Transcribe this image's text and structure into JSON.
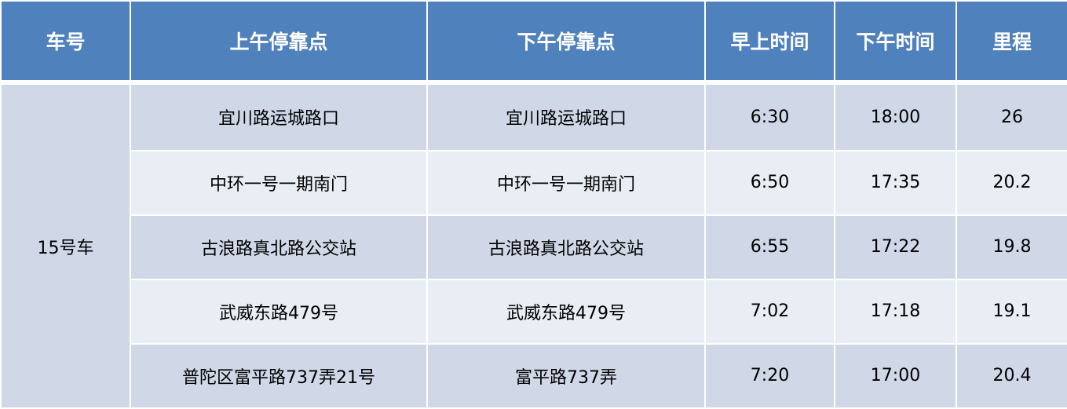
{
  "headers": [
    "车号",
    "上午停靠点",
    "下午停靠点",
    "早上时间",
    "下午时间",
    "里程"
  ],
  "car": "15号车",
  "rows": [
    {
      "am_stop": "宜川路运城路口",
      "pm_stop": "宜川路运城路口",
      "am_time": "6:30",
      "pm_time": "18:00",
      "distance": "26"
    },
    {
      "am_stop": "中环一号一期南门",
      "pm_stop": "中环一号一期南门",
      "am_time": "6:50",
      "pm_time": "17:35",
      "distance": "20.2"
    },
    {
      "am_stop": "古浪路真北路公交站",
      "pm_stop": "古浪路真北路公交站",
      "am_time": "6:55",
      "pm_time": "17:22",
      "distance": "19.8"
    },
    {
      "am_stop": "武威东路479号",
      "pm_stop": "武威东路479号",
      "am_time": "7:02",
      "pm_time": "17:18",
      "distance": "19.1"
    },
    {
      "am_stop": "普陀区富平路737弄21号",
      "pm_stop": "富平路737弄",
      "am_time": "7:20",
      "pm_time": "17:00",
      "distance": "20.4"
    }
  ],
  "colors": {
    "header": "#4f81bd",
    "row_dark": "#d0d8e8",
    "row_light": "#e9edf4"
  }
}
